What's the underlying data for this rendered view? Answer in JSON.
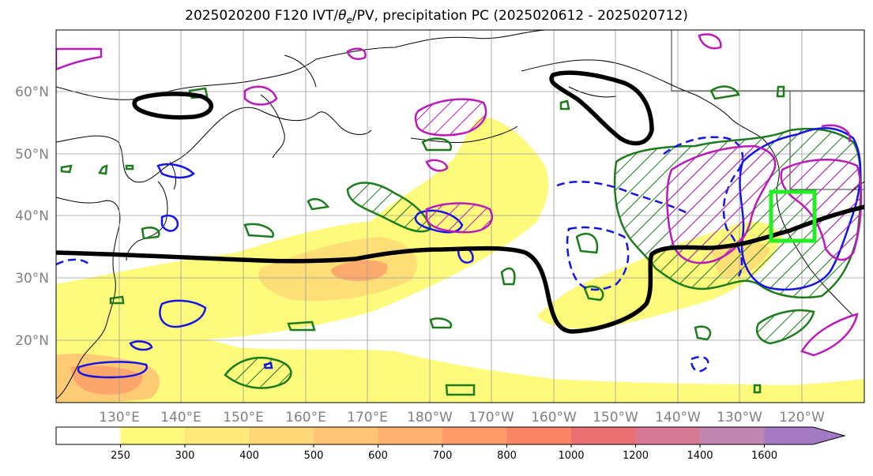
{
  "title_prefix": "2025020200 F120 IVT/",
  "title_theta": "θ",
  "title_sub": "e",
  "title_suffix": "/PV, precipitation PC (2025020612 - 2025020712)",
  "lat_labels": [
    "60°N",
    "50°N",
    "40°N",
    "30°N",
    "20°N"
  ],
  "lon_labels": [
    "130°E",
    "140°E",
    "150°E",
    "160°E",
    "170°E",
    "180°W",
    "170°W",
    "160°W",
    "150°W",
    "140°W",
    "130°W",
    "120°W"
  ],
  "colorbar": {
    "ticks": [
      "250",
      "300",
      "400",
      "500",
      "600",
      "700",
      "800",
      "1000",
      "1200",
      "1400",
      "1600"
    ],
    "colors": [
      "#ffffff",
      "#fdfa7c",
      "#fee97a",
      "#fed877",
      "#fec574",
      "#feb26f",
      "#fd9c6a",
      "#f98466",
      "#ec6f73",
      "#d77a95",
      "#c185b1",
      "#a47ac4"
    ]
  },
  "colors": {
    "ivt_pv_line": "#000000",
    "green_contour": "#1c7c1c",
    "blue_contour": "#1414e6",
    "magenta_contour": "#bb1abb",
    "highlight_box": "#22ee22",
    "coast": "#000000",
    "grid": "#9a9a9a"
  }
}
